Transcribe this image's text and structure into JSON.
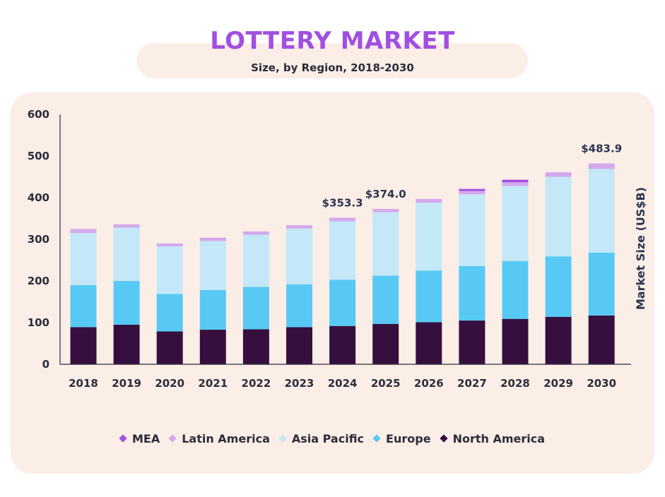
{
  "chart_data": {
    "type": "bar",
    "stacked": true,
    "title": "LOTTERY MARKET",
    "subtitle": "Size, by Region, 2018-2030",
    "xlabel": "",
    "ylabel": "Market Size (US$B)",
    "ylim": [
      0,
      600
    ],
    "yticks": [
      0,
      100,
      200,
      300,
      400,
      500,
      600
    ],
    "grid": false,
    "legend_position": "bottom",
    "categories": [
      "2018",
      "2019",
      "2020",
      "2021",
      "2022",
      "2023",
      "2024",
      "2025",
      "2026",
      "2027",
      "2028",
      "2029",
      "2030"
    ],
    "series": [
      {
        "name": "North America",
        "color": "#35103f",
        "values": [
          89,
          95,
          79,
          83,
          84,
          89,
          92,
          97,
          101,
          105,
          109,
          114,
          117
        ]
      },
      {
        "name": "Europe",
        "color": "#58c9f4",
        "values": [
          101,
          105,
          90,
          95,
          102,
          103,
          111,
          116,
          124,
          131,
          139,
          145,
          151
        ]
      },
      {
        "name": "Asia Pacific",
        "color": "#c4e8f8",
        "values": [
          125,
          128,
          114,
          118,
          125,
          134,
          140,
          152,
          163,
          172,
          180,
          191,
          201
        ]
      },
      {
        "name": "Latin America",
        "color": "#d3a9ec",
        "values": [
          10,
          8,
          7,
          8,
          8,
          8,
          9,
          8,
          9,
          8,
          9,
          11,
          13
        ]
      },
      {
        "name": "MEA",
        "color": "#a14fe0",
        "values": [
          0,
          0,
          0,
          0,
          0,
          0,
          0,
          0,
          0,
          5,
          6,
          0,
          0
        ]
      }
    ],
    "annotations": [
      {
        "category": "2024",
        "text": "$353.3"
      },
      {
        "category": "2025",
        "text": "$374.0"
      },
      {
        "category": "2030",
        "text": "$483.9"
      }
    ]
  },
  "legend_order": [
    "MEA",
    "Latin America",
    "Asia Pacific",
    "Europe",
    "North America"
  ]
}
